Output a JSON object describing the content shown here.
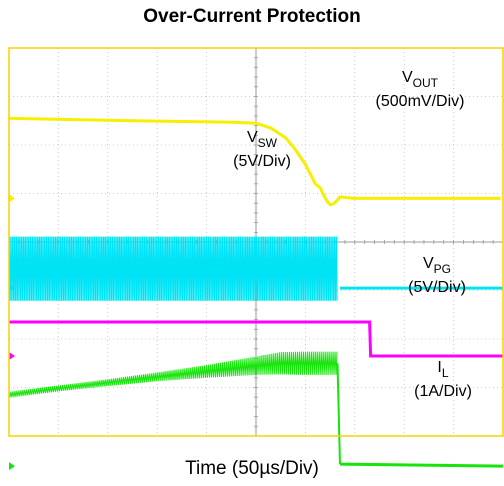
{
  "chart_data": {
    "type": "line",
    "title": "Over-Current Protection",
    "xlabel": "Time (50µs/Div)",
    "x_divisions": 10,
    "y_divisions": 8,
    "grid": true,
    "colors": {
      "V_OUT": "#f7ee00",
      "V_SW": "#00e3f5",
      "V_PG": "#ff00ff",
      "I_L": "#16e40a",
      "frame": "#f5d200",
      "grid": "#bdbdbd"
    },
    "series": [
      {
        "key": "V_OUT",
        "main": "V",
        "sub": "OUT",
        "scale": "(500mV/Div)",
        "description": "output voltage stays at ~6.55 div then collapses around t≈5.8 div with a small dip/ring to ~4.8 div",
        "x": [
          0,
          2.5,
          4.5,
          5.0,
          5.3,
          5.6,
          5.8,
          6.0,
          6.2,
          6.5,
          7.0,
          10.0
        ],
        "values": [
          6.55,
          6.5,
          6.47,
          6.45,
          6.35,
          6.15,
          5.9,
          5.6,
          5.2,
          4.95,
          4.9,
          4.9
        ]
      },
      {
        "key": "V_SW",
        "main": "V",
        "sub": "SW",
        "scale": "(5V/Div)",
        "description": "switching node toggles between ~2.8 and ~4.1 div until switching stops near t≈6.6 div, then stays at ~3.05 div",
        "x": [
          0,
          6.65,
          6.7,
          10.0
        ],
        "values_high": [
          4.1,
          4.1,
          3.05,
          3.05
        ],
        "values_low": [
          2.8,
          2.8,
          3.05,
          3.05
        ]
      },
      {
        "key": "V_PG",
        "main": "V",
        "sub": "PG",
        "scale": "(5V/Div)",
        "description": "power-good high at ~2.35 div, drops to ~1.65 div at t≈7.3 div",
        "x": [
          0,
          7.3,
          7.32,
          10.0
        ],
        "values": [
          2.35,
          2.35,
          1.65,
          1.65
        ]
      },
      {
        "key": "I_L",
        "main": "I",
        "sub": "L",
        "scale": "(1A/Div)",
        "description": "inductor current ramps with ripple from ~0.85 div up to ~1.4 div, peaks near ~2.0 div before shutdown at t≈6.65 div, then ~-0.6 div",
        "x": [
          0,
          1,
          2,
          3,
          4,
          5,
          5.5,
          6,
          6.5,
          6.65,
          6.7,
          10.0
        ],
        "values_mean": [
          0.85,
          0.98,
          1.1,
          1.22,
          1.33,
          1.45,
          1.5,
          1.5,
          1.5,
          1.5,
          -0.58,
          -0.62
        ],
        "ripple": [
          0.12,
          0.12,
          0.14,
          0.18,
          0.26,
          0.38,
          0.46,
          0.48,
          0.48,
          0.48,
          0.0,
          0.0
        ]
      }
    ]
  }
}
